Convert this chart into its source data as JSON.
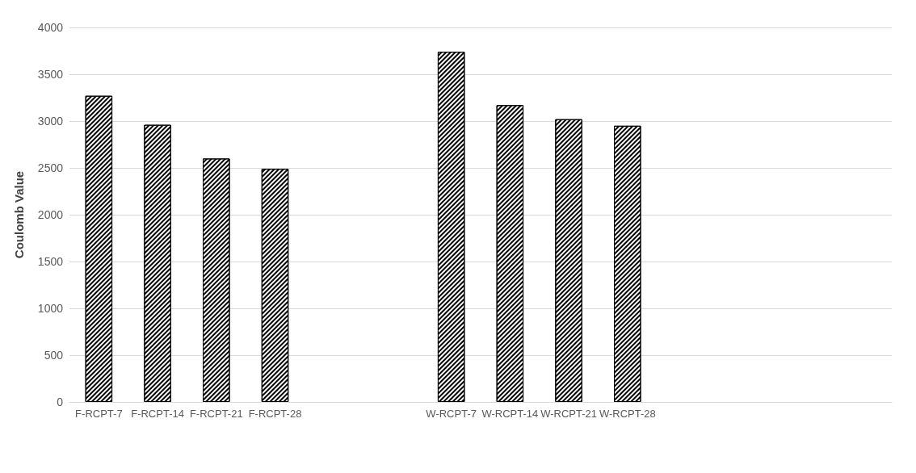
{
  "chart_data": {
    "type": "bar",
    "ylabel": "Coulomb Value",
    "categories": [
      "F-RCPT-7",
      "F-RCPT-14",
      "F-RCPT-21",
      "F-RCPT-28",
      null,
      null,
      "W-RCPT-7",
      "W-RCPT-14",
      "W-RCPT-21",
      "W-RCPT-28",
      null,
      null,
      null,
      null
    ],
    "values": [
      3270,
      2960,
      2600,
      2490,
      null,
      null,
      3740,
      3170,
      3020,
      2950,
      null,
      null,
      null,
      null
    ],
    "color": "#000000",
    "ylim": [
      0,
      4000
    ],
    "yticks": [
      0,
      500,
      1000,
      1500,
      2000,
      2500,
      3000,
      3500,
      4000
    ],
    "grid": "y"
  }
}
